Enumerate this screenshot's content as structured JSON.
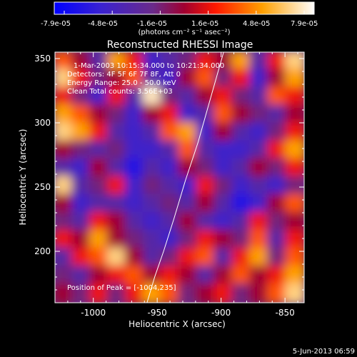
{
  "chart_data": {
    "type": "heatmap",
    "title": "Reconstructed RHESSI Image",
    "xlabel": "Heliocentric X (arcsec)",
    "ylabel": "Heliocentric Y (arcsec)",
    "xlim": [
      -1030,
      -835
    ],
    "ylim": [
      160,
      355
    ],
    "xticks": [
      -1000,
      -950,
      -900,
      -850
    ],
    "yticks": [
      200,
      250,
      300,
      350
    ],
    "colorbar": {
      "range": [
        -7.9e-05,
        7.9e-05
      ],
      "tick_labels": [
        "-7.9e-05",
        "-4.8e-05",
        "-1.6e-05",
        "1.6e-05",
        "4.8e-05",
        "7.9e-05"
      ],
      "unit_label": "(photons cm⁻² s⁻¹ asec⁻²)"
    },
    "annotations": {
      "time_range": "1-Mar-2003 10:15:34.000 to 10:21:34.000",
      "detectors": "Detectors: 4F 5F 6F 7F 8F, Att 0",
      "energy": "Energy Range: 25.0 - 50.0 keV",
      "clean": "Clean     Total counts: 3.56E+03",
      "peak": "Position of Peak = [-1004,235]"
    },
    "limb_curve": {
      "x": [
        -958,
        -952,
        -945,
        -937,
        -928,
        -918,
        -908,
        -898
      ],
      "y": [
        160,
        180,
        200,
        225,
        255,
        285,
        320,
        355
      ]
    },
    "intensity_grid": {
      "rows": 14,
      "cols": 14,
      "values": [
        [
          0.7,
          0.5,
          0.3,
          0.8,
          0.6,
          0.2,
          0.3,
          0.4,
          0.6,
          0.5,
          0.8,
          0.3,
          0.6,
          0.9
        ],
        [
          0.9,
          0.6,
          0.4,
          0.5,
          0.7,
          0.3,
          0.2,
          0.5,
          0.7,
          0.4,
          0.6,
          0.2,
          0.5,
          0.8
        ],
        [
          0.6,
          0.4,
          0.2,
          0.6,
          0.3,
          0.95,
          0.4,
          0.3,
          0.5,
          0.6,
          0.4,
          0.3,
          0.7,
          0.6
        ],
        [
          0.8,
          0.7,
          0.5,
          0.4,
          0.2,
          0.5,
          0.6,
          0.2,
          0.3,
          0.7,
          0.5,
          0.4,
          0.3,
          0.5
        ],
        [
          0.9,
          0.8,
          0.6,
          0.3,
          0.2,
          0.3,
          0.7,
          0.8,
          0.2,
          0.5,
          0.3,
          0.2,
          0.4,
          0.6
        ],
        [
          0.5,
          0.4,
          0.3,
          0.4,
          0.2,
          0.2,
          0.3,
          0.7,
          0.3,
          0.2,
          0.2,
          0.3,
          0.6,
          0.8
        ],
        [
          0.3,
          0.2,
          0.5,
          0.3,
          0.1,
          0.3,
          0.2,
          0.5,
          0.4,
          0.2,
          0.3,
          0.5,
          0.4,
          0.6
        ],
        [
          0.9,
          0.3,
          0.4,
          0.6,
          0.2,
          0.4,
          0.3,
          0.2,
          0.6,
          0.4,
          0.2,
          0.3,
          0.2,
          0.4
        ],
        [
          0.5,
          0.2,
          0.3,
          0.3,
          0.2,
          0.3,
          0.4,
          0.3,
          0.5,
          0.3,
          0.1,
          0.2,
          0.5,
          0.7
        ],
        [
          0.4,
          0.3,
          0.6,
          0.5,
          0.3,
          0.2,
          0.3,
          0.5,
          0.3,
          0.2,
          0.3,
          0.6,
          0.4,
          0.5
        ],
        [
          0.6,
          0.5,
          0.8,
          0.5,
          0.4,
          0.3,
          0.2,
          0.4,
          0.6,
          0.5,
          0.4,
          0.7,
          0.3,
          0.6
        ],
        [
          0.3,
          0.6,
          0.7,
          0.9,
          0.5,
          0.3,
          0.4,
          0.6,
          0.7,
          0.3,
          0.6,
          0.8,
          0.4,
          0.7
        ],
        [
          0.4,
          0.3,
          0.5,
          0.6,
          0.7,
          0.5,
          0.6,
          0.5,
          0.3,
          0.5,
          0.7,
          0.5,
          0.6,
          0.8
        ],
        [
          0.5,
          0.4,
          0.6,
          0.4,
          0.6,
          0.8,
          0.7,
          0.4,
          0.5,
          0.6,
          0.4,
          0.5,
          0.7,
          0.9
        ]
      ]
    }
  },
  "footer": {
    "date": "5-Jun-2013 06:59"
  },
  "colors": {
    "background": "#000000",
    "axes": "#ffffff",
    "limb": "#ffffff"
  }
}
